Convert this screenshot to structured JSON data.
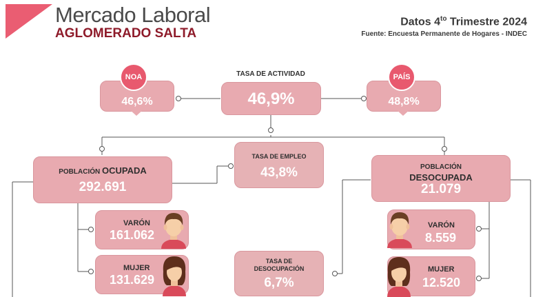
{
  "header": {
    "title": "Mercado Laboral",
    "subtitle": "AGLOMERADO SALTA",
    "datos_prefix": "Datos 4",
    "datos_sup": "to",
    "datos_suffix": " Trimestre 2024",
    "fuente": "Fuente: Encuesta Permanente de Hogares - INDEC"
  },
  "colors": {
    "accent": "#e8596e",
    "box": "#e8aab0",
    "title_red": "#8e1b2a"
  },
  "actividad": {
    "label": "TASA DE ACTIVIDAD",
    "value": "46,9%"
  },
  "noa": {
    "badge": "NOA",
    "value": "46,6%"
  },
  "pais": {
    "badge": "PAÍS",
    "value": "48,8%"
  },
  "empleo": {
    "label": "TASA DE EMPLEO",
    "value": "43,8%"
  },
  "ocupada": {
    "label_prefix": "POBLACIÓN ",
    "label_strong": "OCUPADA",
    "value": "292.691"
  },
  "desocupada": {
    "label_prefix": "POBLACIÓN",
    "label_strong": "DESOCUPADA",
    "value": "21.079"
  },
  "desocupacion": {
    "label_line1": "TASA DE",
    "label_line2": "DESOCUPACIÓN",
    "value": "6,7%"
  },
  "ocupada_varon": {
    "label": "VARÓN",
    "value": "161.062",
    "icon": "man-avatar-icon"
  },
  "ocupada_mujer": {
    "label": "MUJER",
    "value": "131.629",
    "icon": "woman-avatar-icon"
  },
  "desocupada_varon": {
    "label": "VARÓN",
    "value": "8.559",
    "icon": "man-avatar-icon"
  },
  "desocupada_mujer": {
    "label": "MUJER",
    "value": "12.520",
    "icon": "woman-avatar-icon"
  }
}
